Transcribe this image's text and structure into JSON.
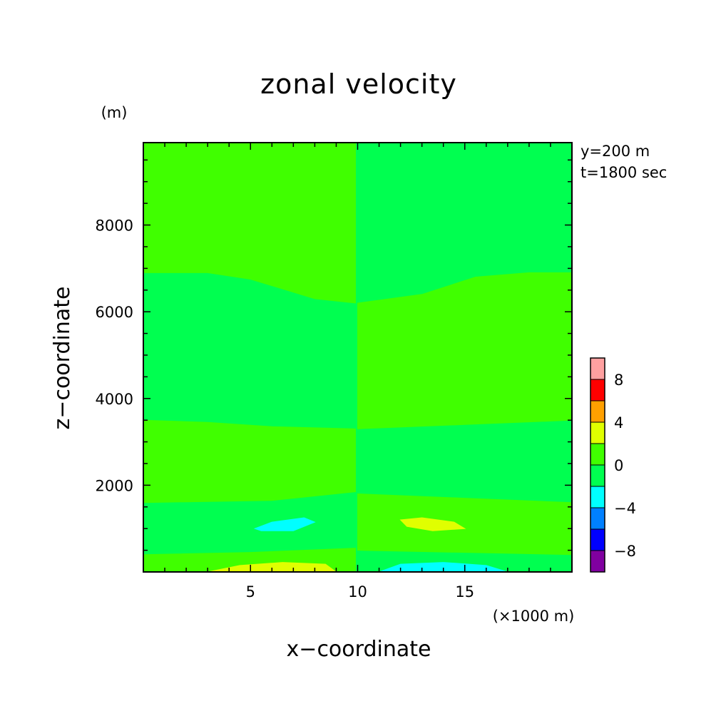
{
  "chart_data": {
    "type": "heatmap",
    "title": "zonal velocity",
    "xlabel": "x−coordinate",
    "ylabel": "z−coordinate",
    "x_unit": "(×1000 m)",
    "y_unit": "(m)",
    "xlim": [
      0,
      20
    ],
    "ylim": [
      0,
      9900
    ],
    "x_ticks": [
      5,
      10,
      15
    ],
    "x_tick_labels": [
      "5",
      "10",
      "15"
    ],
    "y_ticks": [
      2000,
      4000,
      6000,
      8000
    ],
    "y_tick_labels": [
      "2000",
      "4000",
      "6000",
      "8000"
    ],
    "annotations": [
      "y=200 m",
      "t=1800 sec"
    ],
    "colorbar": {
      "levels": [
        -10,
        -8,
        -6,
        -4,
        -2,
        0,
        2,
        4,
        6,
        8,
        10
      ],
      "tick_labels": [
        "−8",
        "−4",
        "0",
        "4",
        "8"
      ],
      "tick_values": [
        -8,
        -4,
        0,
        4,
        8
      ],
      "colors": [
        "#8000a0",
        "#0000ff",
        "#0080ff",
        "#00ffff",
        "#00ff50",
        "#40ff00",
        "#e0ff00",
        "#ffa000",
        "#ff0000",
        "#ffa0a0"
      ]
    },
    "background_level": {
      "min": -2,
      "max": 0,
      "color": "#00ff50"
    },
    "regions": [
      {
        "level": [
          0,
          2
        ],
        "color": "#40ff00",
        "outline": [
          [
            0,
            9900
          ],
          [
            9.9,
            9900
          ],
          [
            9.9,
            6200
          ],
          [
            8,
            6300
          ],
          [
            5,
            6750
          ],
          [
            3,
            6900
          ],
          [
            0,
            6900
          ]
        ]
      },
      {
        "level": [
          0,
          2
        ],
        "color": "#40ff00",
        "outline": [
          [
            10,
            6200
          ],
          [
            13,
            6400
          ],
          [
            15.5,
            6800
          ],
          [
            18,
            6900
          ],
          [
            20,
            6900
          ],
          [
            20,
            3500
          ],
          [
            15,
            3400
          ],
          [
            10,
            3300
          ]
        ]
      },
      {
        "level": [
          0,
          2
        ],
        "color": "#40ff00",
        "outline": [
          [
            0,
            3500
          ],
          [
            3,
            3450
          ],
          [
            6,
            3350
          ],
          [
            9.9,
            3300
          ],
          [
            9.9,
            1850
          ],
          [
            6,
            1650
          ],
          [
            0,
            1600
          ]
        ]
      },
      {
        "level": [
          0,
          2
        ],
        "color": "#40ff00",
        "outline": [
          [
            10,
            1800
          ],
          [
            15,
            1700
          ],
          [
            20,
            1600
          ],
          [
            20,
            400
          ],
          [
            10,
            500
          ]
        ]
      },
      {
        "level": [
          0,
          2
        ],
        "color": "#40ff00",
        "outline": [
          [
            0,
            400
          ],
          [
            5,
            450
          ],
          [
            9.9,
            550
          ],
          [
            9.9,
            0
          ],
          [
            0,
            0
          ]
        ]
      },
      {
        "level": [
          -4,
          -2
        ],
        "color": "#00ffff",
        "outline": [
          [
            5.2,
            1000
          ],
          [
            6,
            1150
          ],
          [
            7.5,
            1250
          ],
          [
            8,
            1150
          ],
          [
            7,
            950
          ],
          [
            5.5,
            950
          ]
        ]
      },
      {
        "level": [
          2,
          4
        ],
        "color": "#e0ff00",
        "outline": [
          [
            12,
            1200
          ],
          [
            13,
            1250
          ],
          [
            14.5,
            1150
          ],
          [
            15,
            1000
          ],
          [
            13.5,
            950
          ],
          [
            12.3,
            1050
          ]
        ]
      },
      {
        "level": [
          2,
          4
        ],
        "color": "#e0ff00",
        "outline": [
          [
            3,
            0
          ],
          [
            4.5,
            150
          ],
          [
            6.5,
            220
          ],
          [
            8.5,
            180
          ],
          [
            9,
            0
          ]
        ]
      },
      {
        "level": [
          -4,
          -2
        ],
        "color": "#00ffff",
        "outline": [
          [
            11,
            0
          ],
          [
            12,
            180
          ],
          [
            14,
            220
          ],
          [
            16,
            150
          ],
          [
            17,
            0
          ]
        ]
      }
    ]
  }
}
